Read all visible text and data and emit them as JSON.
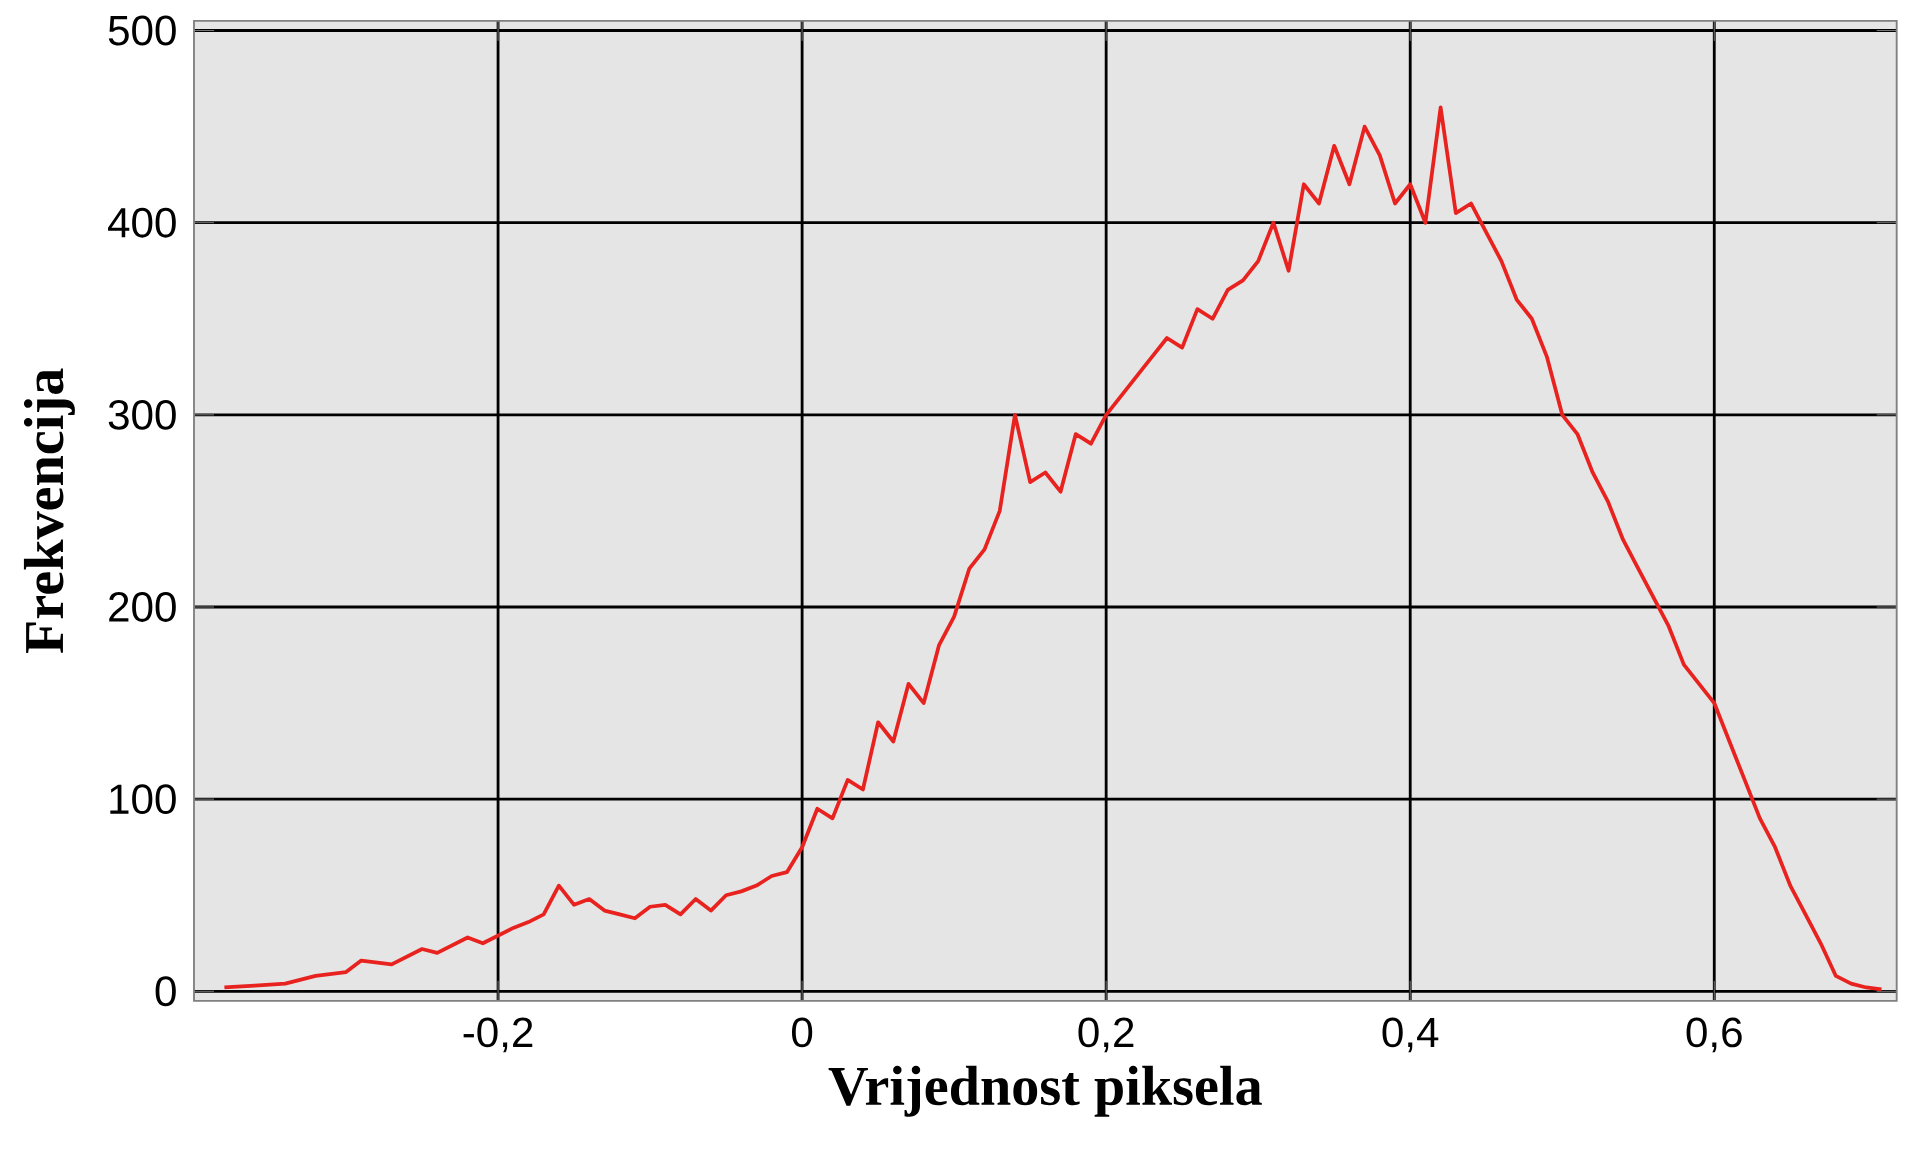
{
  "chart_data": {
    "type": "line",
    "xlabel": "Vrijednost piksela",
    "ylabel": "Frekvencija",
    "x": [
      -0.38,
      -0.36,
      -0.34,
      -0.32,
      -0.3,
      -0.29,
      -0.27,
      -0.25,
      -0.24,
      -0.22,
      -0.21,
      -0.19,
      -0.18,
      -0.17,
      -0.16,
      -0.15,
      -0.14,
      -0.13,
      -0.12,
      -0.11,
      -0.1,
      -0.09,
      -0.08,
      -0.07,
      -0.06,
      -0.05,
      -0.04,
      -0.03,
      -0.02,
      -0.01,
      0.0,
      0.01,
      0.02,
      0.03,
      0.04,
      0.05,
      0.06,
      0.07,
      0.08,
      0.09,
      0.1,
      0.11,
      0.12,
      0.13,
      0.14,
      0.15,
      0.16,
      0.17,
      0.18,
      0.19,
      0.2,
      0.21,
      0.22,
      0.23,
      0.24,
      0.25,
      0.26,
      0.27,
      0.28,
      0.29,
      0.3,
      0.31,
      0.32,
      0.33,
      0.34,
      0.35,
      0.36,
      0.37,
      0.38,
      0.39,
      0.4,
      0.41,
      0.42,
      0.43,
      0.44,
      0.45,
      0.46,
      0.47,
      0.48,
      0.49,
      0.5,
      0.51,
      0.52,
      0.53,
      0.54,
      0.55,
      0.56,
      0.57,
      0.58,
      0.59,
      0.6,
      0.61,
      0.62,
      0.63,
      0.64,
      0.65,
      0.66,
      0.67,
      0.68,
      0.69,
      0.7,
      0.71
    ],
    "series": [
      {
        "color": "#e8231f",
        "values": [
          2,
          3,
          4,
          8,
          10,
          16,
          14,
          22,
          20,
          28,
          25,
          33,
          36,
          40,
          55,
          45,
          48,
          42,
          40,
          38,
          44,
          45,
          40,
          48,
          42,
          50,
          52,
          55,
          60,
          62,
          75,
          95,
          90,
          110,
          105,
          140,
          130,
          160,
          150,
          180,
          195,
          220,
          230,
          250,
          300,
          265,
          270,
          260,
          290,
          285,
          300,
          310,
          320,
          330,
          340,
          335,
          355,
          350,
          365,
          370,
          380,
          400,
          375,
          420,
          410,
          440,
          420,
          450,
          435,
          410,
          420,
          400,
          460,
          405,
          410,
          395,
          380,
          360,
          350,
          330,
          300,
          290,
          270,
          255,
          235,
          220,
          205,
          190,
          170,
          160,
          150,
          130,
          110,
          90,
          75,
          55,
          40,
          25,
          8,
          4,
          2,
          1
        ]
      }
    ],
    "xlim": [
      -0.4,
      0.72
    ],
    "ylim": [
      -5,
      505
    ],
    "xticks": [
      {
        "value": -0.2,
        "label": "-0,2"
      },
      {
        "value": 0,
        "label": "0"
      },
      {
        "value": 0.2,
        "label": "0,2"
      },
      {
        "value": 0.4,
        "label": "0,4"
      },
      {
        "value": 0.6,
        "label": "0,6"
      }
    ],
    "yticks": [
      0,
      100,
      200,
      300,
      400,
      500
    ],
    "grid": true,
    "marker": "none",
    "line_style": "solid"
  }
}
